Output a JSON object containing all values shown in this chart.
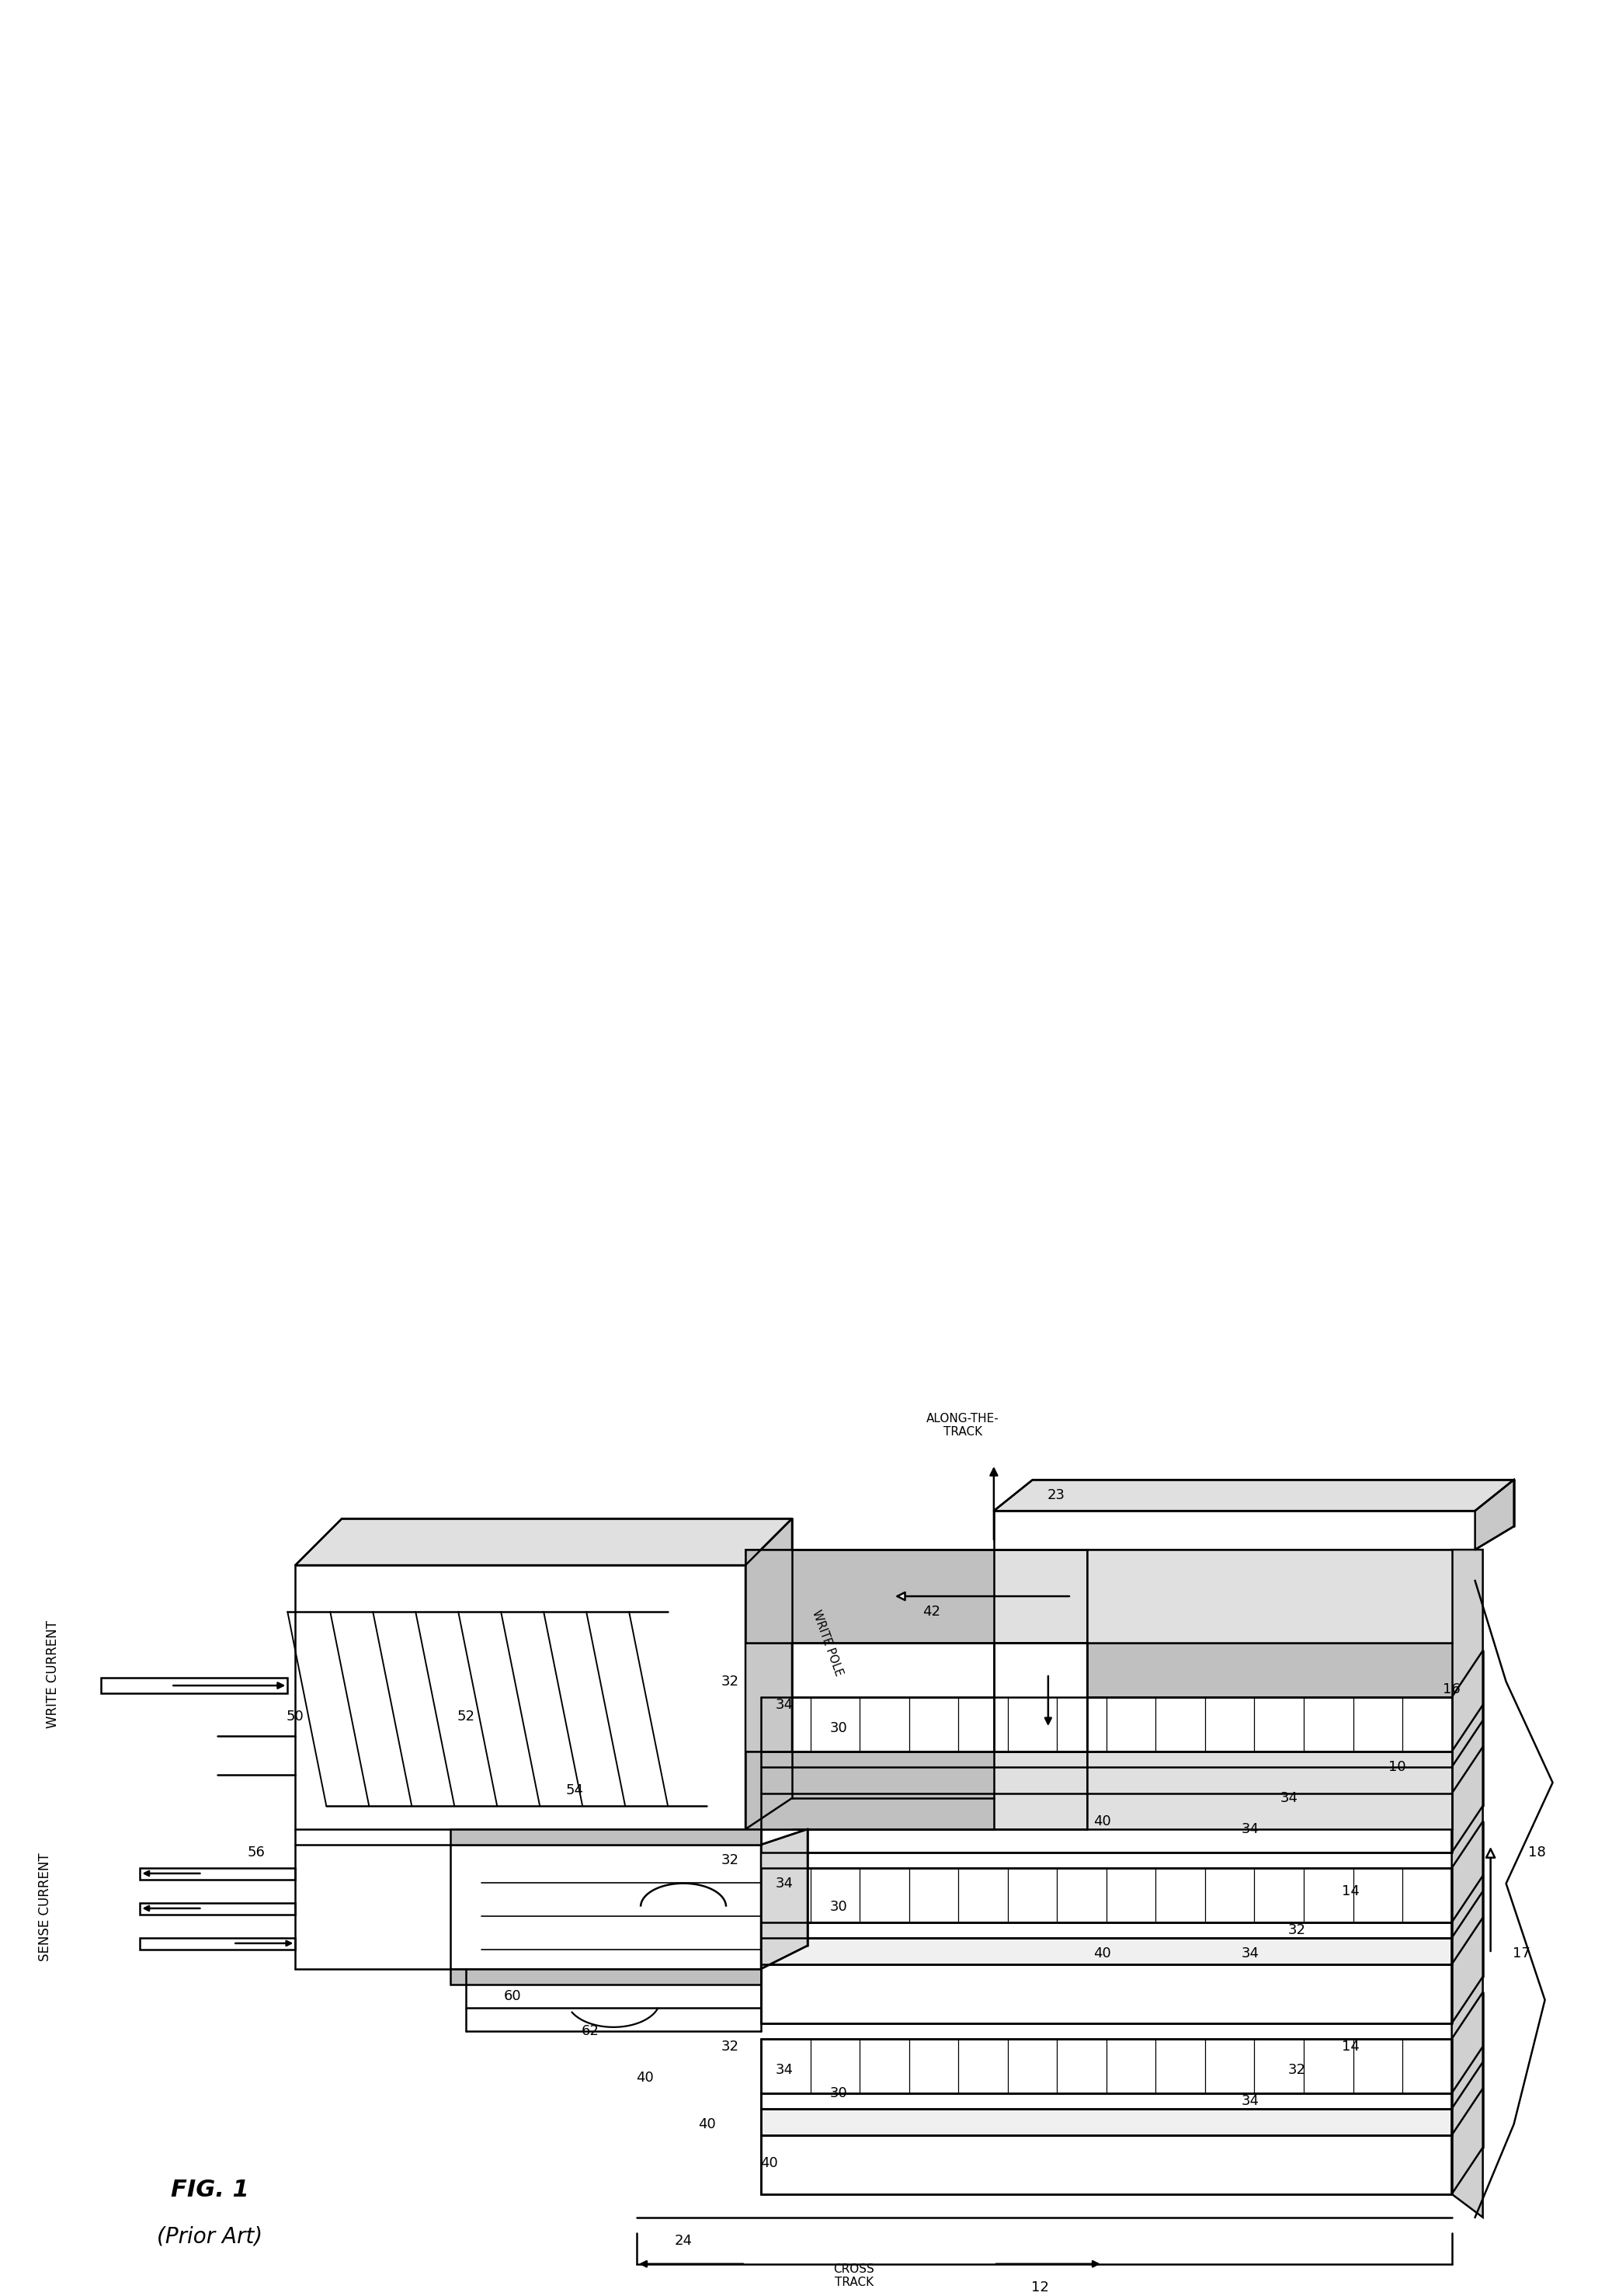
{
  "background": "#ffffff",
  "lc": "#000000",
  "lw": 1.8,
  "fig_title": "FIG. 1",
  "fig_subtitle": "(Prior Art)",
  "labels_along_track": "ALONG-THE-\nTRACK",
  "label_cross_track": "CROSS\nTRACK",
  "label_write_current": "WRITE CURRENT",
  "label_sense_current": "SENSE CURRENT",
  "label_write_pole": "WRITE POLE"
}
